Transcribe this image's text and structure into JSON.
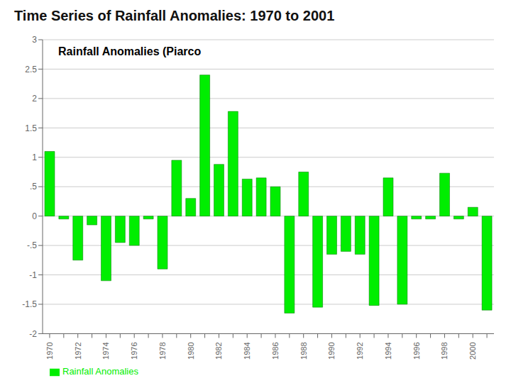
{
  "chart_data": {
    "type": "bar",
    "title": "Time Series of Rainfall Anomalies: 1970 to 2001",
    "subtitle": "Rainfall Anomalies (Piarco",
    "categories": [
      "1970",
      null,
      "1972",
      null,
      "1974",
      null,
      "1976",
      null,
      "1978",
      null,
      "1980",
      null,
      "1982",
      null,
      "1984",
      null,
      "1986",
      null,
      "1988",
      null,
      "1990",
      null,
      "1992",
      null,
      "1994",
      null,
      "1996",
      null,
      "1998",
      null,
      "2000",
      null
    ],
    "series": [
      {
        "name": "Rainfall Anomalies",
        "color": "#00ee00",
        "values": [
          1.1,
          -0.05,
          -0.75,
          -0.15,
          -1.1,
          -0.45,
          -0.5,
          -0.05,
          -0.9,
          0.95,
          0.3,
          2.4,
          0.88,
          1.78,
          0.63,
          0.65,
          0.5,
          -1.65,
          0.75,
          -1.55,
          -0.65,
          -0.6,
          -0.65,
          -1.52,
          0.65,
          -1.5,
          -0.05,
          -0.05,
          0.73,
          -0.05,
          0.15,
          -1.6
        ]
      }
    ],
    "ylim": [
      -2.0,
      3.0
    ],
    "yticks": [
      -2,
      -1.5,
      -1,
      {
        "value": -0.5,
        "label": "-.5"
      },
      0,
      {
        "value": 0.5,
        "label": ".5"
      },
      1,
      1.5,
      2,
      2.5,
      3
    ],
    "grid": true,
    "legend": "lower left"
  }
}
